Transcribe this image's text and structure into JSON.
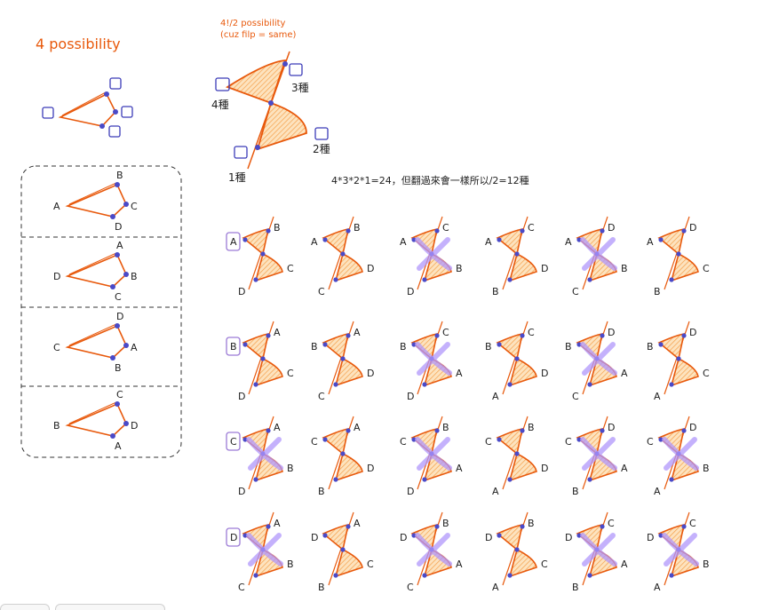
{
  "titles": {
    "left": "4 possibility",
    "middle_line1": "4!/2 possibility",
    "middle_line2": "(cuz filp = same)",
    "formula": "4*3*2*1=24，但翻過來會一樣所以/2=12種"
  },
  "counts": {
    "c4": "4種",
    "c3": "3種",
    "c2": "2種",
    "c1": "1種"
  },
  "left_panels": [
    {
      "tip": "A",
      "top": "B",
      "mid": "C",
      "bot": "D"
    },
    {
      "tip": "D",
      "top": "A",
      "mid": "B",
      "bot": "C"
    },
    {
      "tip": "C",
      "top": "D",
      "mid": "A",
      "bot": "B"
    },
    {
      "tip": "B",
      "top": "C",
      "mid": "D",
      "bot": "A"
    }
  ],
  "rows": [
    {
      "key": "A",
      "cells": [
        {
          "l1": "A",
          "l2": "B",
          "l3": "C",
          "l4": "D",
          "crossed": false
        },
        {
          "l1": "A",
          "l2": "B",
          "l3": "D",
          "l4": "C",
          "crossed": false
        },
        {
          "l1": "A",
          "l2": "C",
          "l3": "B",
          "l4": "D",
          "crossed": true
        },
        {
          "l1": "A",
          "l2": "C",
          "l3": "D",
          "l4": "B",
          "crossed": false
        },
        {
          "l1": "A",
          "l2": "D",
          "l3": "B",
          "l4": "C",
          "crossed": true
        },
        {
          "l1": "A",
          "l2": "D",
          "l3": "C",
          "l4": "B",
          "crossed": false
        }
      ]
    },
    {
      "key": "B",
      "cells": [
        {
          "l1": "B",
          "l2": "A",
          "l3": "C",
          "l4": "D",
          "crossed": false
        },
        {
          "l1": "B",
          "l2": "A",
          "l3": "D",
          "l4": "C",
          "crossed": false
        },
        {
          "l1": "B",
          "l2": "C",
          "l3": "A",
          "l4": "D",
          "crossed": true
        },
        {
          "l1": "B",
          "l2": "C",
          "l3": "D",
          "l4": "A",
          "crossed": false
        },
        {
          "l1": "B",
          "l2": "D",
          "l3": "A",
          "l4": "C",
          "crossed": true
        },
        {
          "l1": "B",
          "l2": "D",
          "l3": "C",
          "l4": "A",
          "crossed": false
        }
      ]
    },
    {
      "key": "C",
      "cells": [
        {
          "l1": "C",
          "l2": "A",
          "l3": "B",
          "l4": "D",
          "crossed": true
        },
        {
          "l1": "C",
          "l2": "A",
          "l3": "D",
          "l4": "B",
          "crossed": false
        },
        {
          "l1": "C",
          "l2": "B",
          "l3": "A",
          "l4": "D",
          "crossed": true
        },
        {
          "l1": "C",
          "l2": "B",
          "l3": "D",
          "l4": "A",
          "crossed": false
        },
        {
          "l1": "C",
          "l2": "D",
          "l3": "A",
          "l4": "B",
          "crossed": true
        },
        {
          "l1": "C",
          "l2": "D",
          "l3": "B",
          "l4": "A",
          "crossed": true
        }
      ]
    },
    {
      "key": "D",
      "cells": [
        {
          "l1": "D",
          "l2": "A",
          "l3": "B",
          "l4": "C",
          "crossed": true
        },
        {
          "l1": "D",
          "l2": "A",
          "l3": "C",
          "l4": "B",
          "crossed": false
        },
        {
          "l1": "D",
          "l2": "B",
          "l3": "A",
          "l4": "C",
          "crossed": true
        },
        {
          "l1": "D",
          "l2": "B",
          "l3": "C",
          "l4": "A",
          "crossed": false
        },
        {
          "l1": "D",
          "l2": "C",
          "l3": "A",
          "l4": "B",
          "crossed": true
        },
        {
          "l1": "D",
          "l2": "C",
          "l3": "B",
          "l4": "A",
          "crossed": true
        }
      ]
    }
  ],
  "colors": {
    "orange": "#e8590c",
    "fill": "#fcc888",
    "node": "#4a4ac8",
    "cross": "#b197fc",
    "keybox": "#9c7bd6",
    "dash": "#333333"
  }
}
